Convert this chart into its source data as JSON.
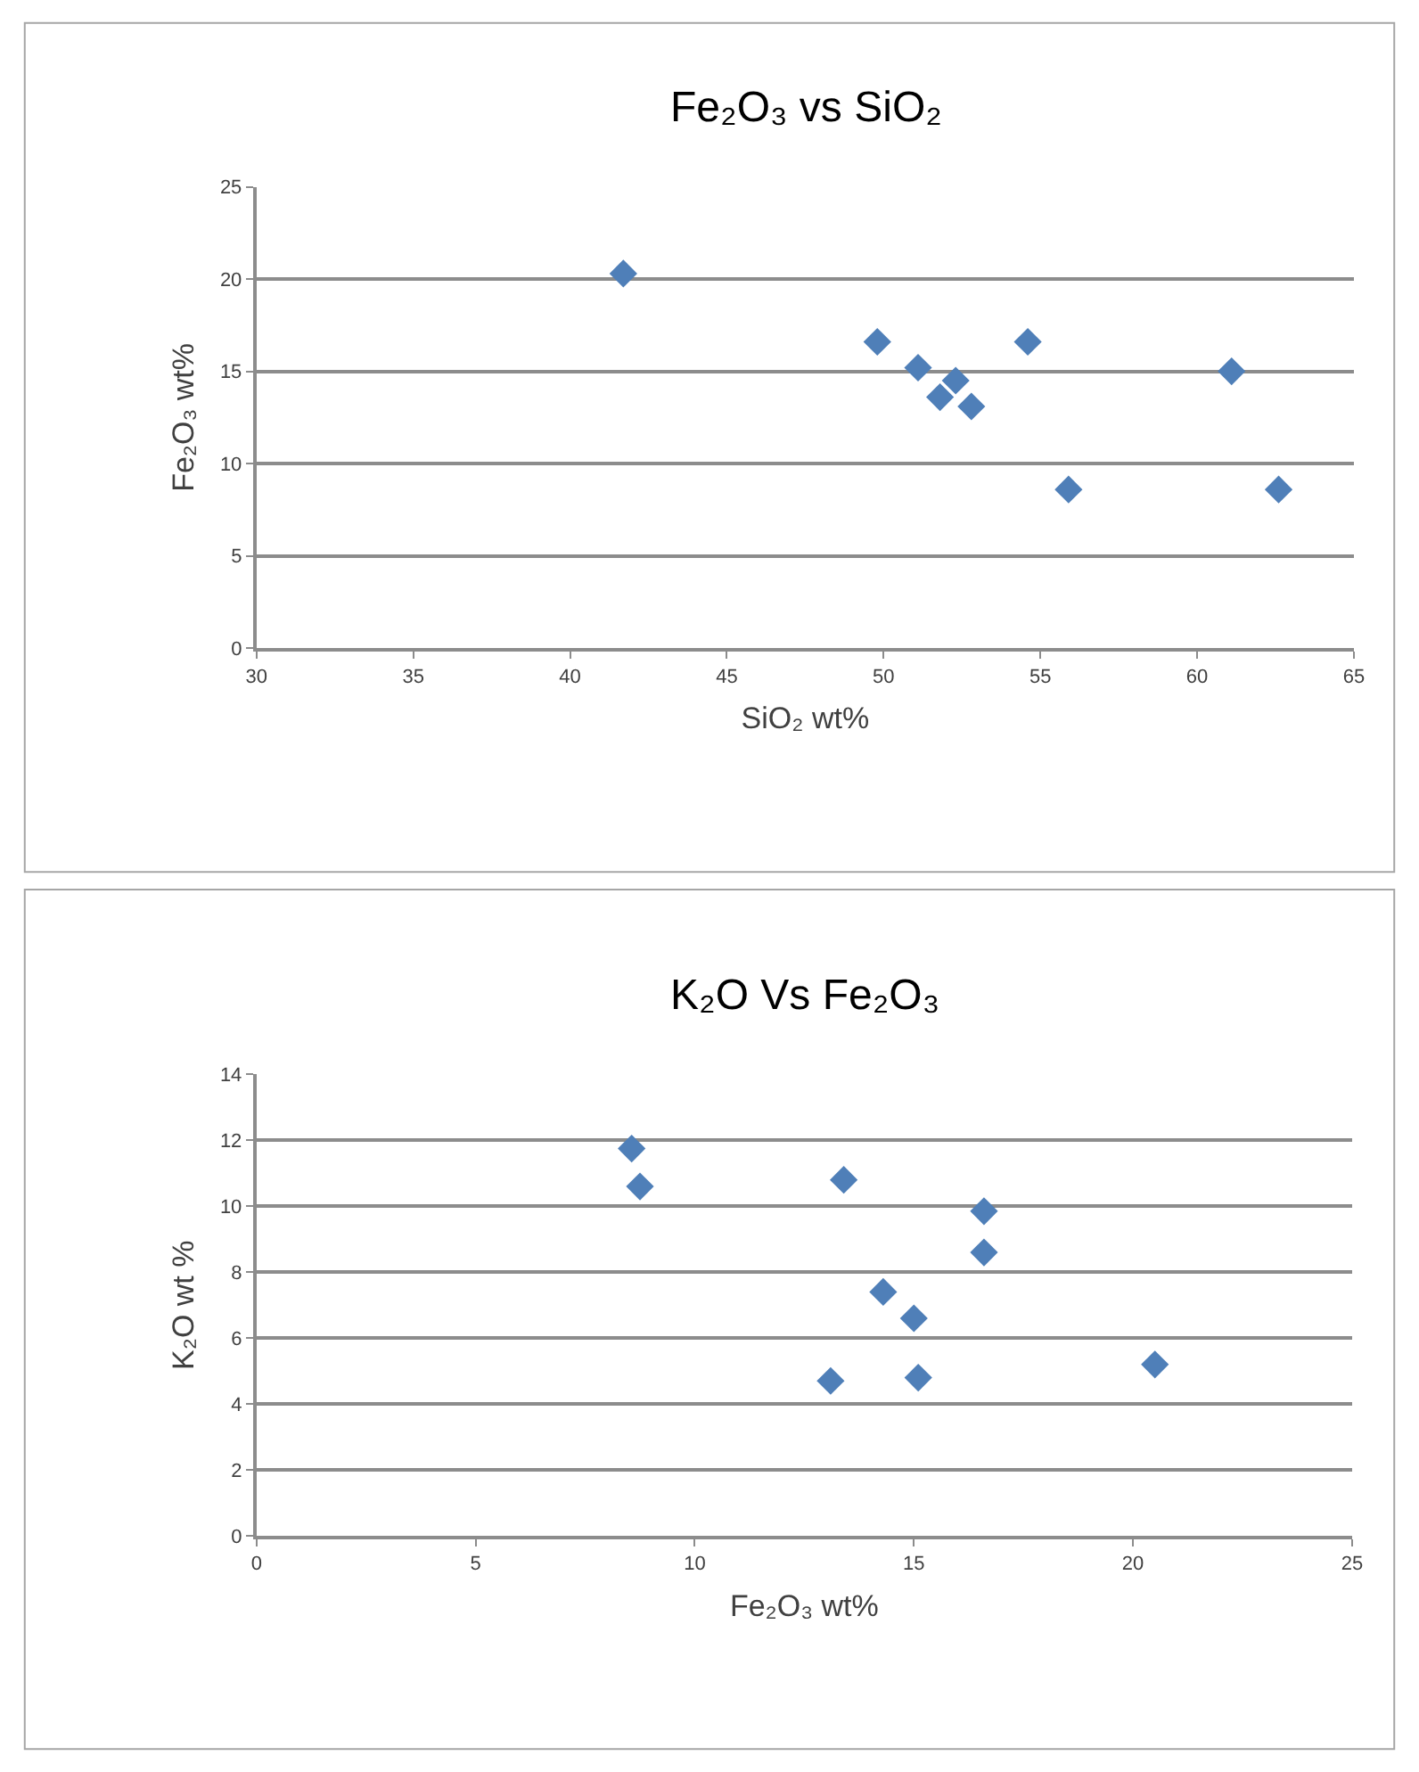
{
  "chart_data": [
    {
      "type": "scatter",
      "title": "Fe₂O₃ vs SiO₂",
      "xlabel": "SiO₂ wt%",
      "ylabel": "Fe₂O₃ wt%",
      "x": [
        41.7,
        49.8,
        51.1,
        52.3,
        51.8,
        52.8,
        54.6,
        61.1,
        55.9,
        62.6
      ],
      "series": [
        {
          "color": "#4f7fb8",
          "values": [
            20.3,
            16.6,
            15.2,
            14.5,
            13.6,
            13.1,
            16.6,
            15.0,
            8.6,
            8.6
          ]
        }
      ],
      "xlim": [
        30,
        65
      ],
      "xticks": [
        30,
        35,
        40,
        45,
        50,
        55,
        60,
        65
      ],
      "ylim": [
        0,
        25
      ],
      "yticks": [
        0,
        5,
        10,
        15,
        20,
        25
      ],
      "grid": "y",
      "marker": "diamond"
    },
    {
      "type": "scatter",
      "title": "K₂O Vs Fe₂O₃",
      "xlabel": "Fe₂O₃ wt%",
      "ylabel": "K₂O wt %",
      "x": [
        8.56,
        8.75,
        13.4,
        16.6,
        16.6,
        14.3,
        15.0,
        13.1,
        15.1,
        20.5
      ],
      "series": [
        {
          "color": "#4f7fb8",
          "values": [
            11.75,
            10.6,
            10.8,
            9.85,
            8.6,
            7.4,
            6.6,
            4.7,
            4.8,
            5.2
          ]
        }
      ],
      "xlim": [
        0,
        25
      ],
      "xticks": [
        0,
        5,
        10,
        15,
        20,
        25
      ],
      "ylim": [
        0,
        14
      ],
      "yticks": [
        0,
        2,
        4,
        6,
        8,
        10,
        12,
        14
      ],
      "grid": "y",
      "marker": "diamond"
    }
  ]
}
